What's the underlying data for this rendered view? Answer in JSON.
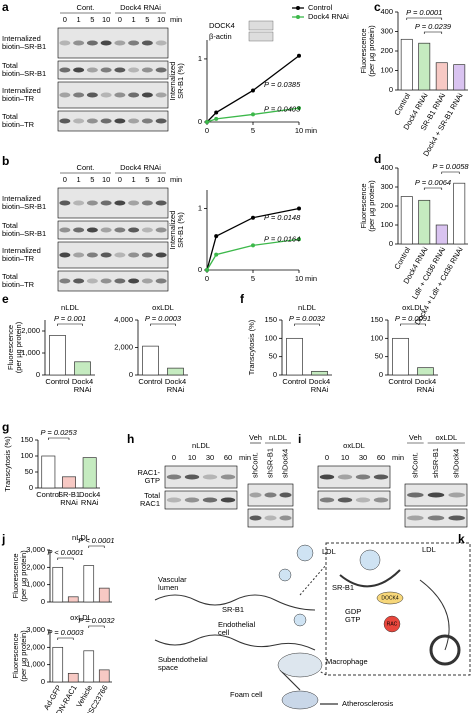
{
  "chart_data": [
    {
      "panel": "a",
      "type": "line",
      "ylabel": [
        "Internalized",
        "SR-B1 (%)"
      ],
      "xlabel": "min",
      "x": [
        0,
        1,
        5,
        10
      ],
      "xlim": [
        0,
        10
      ],
      "xticks": [
        0,
        5,
        10
      ],
      "ylim": [
        0,
        1.3
      ],
      "yticks": [
        0,
        1
      ],
      "legend": "top",
      "series": [
        {
          "name": "Control",
          "color": "#000000",
          "values": [
            0,
            0.15,
            0.5,
            1.05
          ]
        },
        {
          "name": "Dock4 RNAi",
          "color": "#3cb84a",
          "values": [
            0,
            0.05,
            0.12,
            0.22
          ]
        }
      ],
      "annotations": [
        "P = 0.0385",
        "P = 0.0403"
      ],
      "inset": [
        "DOCK4",
        "β-actin"
      ]
    },
    {
      "panel": "c",
      "type": "bar",
      "ylabel": [
        "Fluorescence",
        "(per µg protein)"
      ],
      "categories": [
        "Control",
        "Dock4 RNAi",
        "SR-B1 RNAi",
        "Dock4 + SR-B1 RNAi"
      ],
      "values": [
        260,
        240,
        140,
        130
      ],
      "colors": [
        "#ffffff",
        "#c5ebc0",
        "#f7c9c4",
        "#d9c3f0"
      ],
      "ylim": [
        0,
        400
      ],
      "yticks": [
        0,
        100,
        200,
        300,
        400
      ],
      "annotations": [
        "P = 0.0001",
        "P = 0.0239"
      ]
    },
    {
      "panel": "b",
      "type": "line",
      "ylabel": [
        "Internalized",
        "SR-B1 (%)"
      ],
      "xlabel": "min",
      "x": [
        0,
        1,
        5,
        10
      ],
      "xlim": [
        0,
        10
      ],
      "xticks": [
        0,
        5,
        10
      ],
      "ylim": [
        0,
        1.3
      ],
      "yticks": [
        0,
        1
      ],
      "series": [
        {
          "color": "#000000",
          "values": [
            0,
            0.55,
            0.85,
            1.0
          ]
        },
        {
          "color": "#3cb84a",
          "values": [
            0,
            0.25,
            0.4,
            0.5
          ]
        }
      ],
      "annotations": [
        "P = 0.0148",
        "P = 0.0164"
      ]
    },
    {
      "panel": "d",
      "type": "bar",
      "ylabel": [
        "Fluorescence",
        "(per µg protein)"
      ],
      "categories": [
        "Control",
        "Dock4 RNAi",
        "Ldlr + Cd36 RNAi",
        "Dock4 + Ldlr + Cd36 RNAi"
      ],
      "values": [
        250,
        230,
        100,
        320
      ],
      "colors": [
        "#ffffff",
        "#c5ebc0",
        "#d9c3f0",
        "#ffffff"
      ],
      "ylim": [
        0,
        400
      ],
      "yticks": [
        0,
        100,
        200,
        300,
        400
      ],
      "annotations": [
        "P = 0.0064",
        "P = 0.0058"
      ]
    },
    {
      "panel": "e",
      "type": "bar",
      "title": "nLDL",
      "ylabel": [
        "Fluorescence",
        "(per µg protein)"
      ],
      "categories": [
        [
          "Control"
        ],
        [
          "Dock4",
          "RNAi"
        ]
      ],
      "values": [
        1800,
        600
      ],
      "colors": [
        "#ffffff",
        "#c5ebc0"
      ],
      "ylim": [
        0,
        2500
      ],
      "yticks": [
        0,
        {
          "value": 1000,
          "label": "1,000"
        },
        {
          "value": 2000,
          "label": "2,000"
        }
      ],
      "annotations": [
        "P = 0.001"
      ]
    },
    {
      "type": "bar",
      "title": "oxLDL",
      "categories": [
        [
          "Control"
        ],
        [
          "Dock4",
          "RNAi"
        ]
      ],
      "values": [
        2100,
        500
      ],
      "colors": [
        "#ffffff",
        "#c5ebc0"
      ],
      "ylim": [
        0,
        4000
      ],
      "yticks": [
        0,
        {
          "value": 2000,
          "label": "2,000"
        },
        {
          "value": 4000,
          "label": "4,000"
        }
      ],
      "annotations": [
        "P = 0.0003"
      ]
    },
    {
      "panel": "f",
      "type": "bar",
      "title": "nLDL",
      "ylabel": [
        "Transcytosis (%)"
      ],
      "categories": [
        [
          "Control"
        ],
        [
          "Dock4",
          "RNAi"
        ]
      ],
      "values": [
        100,
        10
      ],
      "colors": [
        "#ffffff",
        "#c5ebc0"
      ],
      "ylim": [
        0,
        150
      ],
      "yticks": [
        0,
        50,
        100,
        150
      ],
      "annotations": [
        "P = 0.0032"
      ]
    },
    {
      "type": "bar",
      "title": "oxLDL",
      "categories": [
        [
          "Control"
        ],
        [
          "Dock4",
          "RNAi"
        ]
      ],
      "values": [
        100,
        20
      ],
      "colors": [
        "#ffffff",
        "#c5ebc0"
      ],
      "ylim": [
        0,
        150
      ],
      "yticks": [
        0,
        50,
        100,
        150
      ],
      "annotations": [
        "P = 0.0091"
      ]
    },
    {
      "panel": "g",
      "type": "bar",
      "ylabel": [
        "Transcytosis (%)"
      ],
      "categories": [
        [
          "Control"
        ],
        [
          "SR-B1",
          "RNAi"
        ],
        [
          "Dock4",
          "RNAi"
        ]
      ],
      "values": [
        100,
        35,
        95
      ],
      "colors": [
        "#ffffff",
        "#f7c9c4",
        "#c5ebc0"
      ],
      "ylim": [
        0,
        150
      ],
      "yticks": [
        0,
        50,
        100,
        150
      ],
      "annotations": [
        "P = 0.0253"
      ]
    },
    {
      "panel": "j",
      "type": "bar",
      "title": "nLDL",
      "ylabel": [
        "Fluorescence",
        "(per µg protein)"
      ],
      "values": [
        2000,
        300,
        2100,
        800
      ],
      "colors": [
        "#ffffff",
        "#f7c9c4",
        "#ffffff",
        "#f7c9c4"
      ],
      "ylim": [
        0,
        3000
      ],
      "yticks": [
        0,
        {
          "value": 1000,
          "label": "1,000"
        },
        {
          "value": 2000,
          "label": "2,000"
        },
        {
          "value": 3000,
          "label": "3,000"
        }
      ],
      "annotations": [
        "P < 0.0001",
        "P < 0.0001"
      ]
    },
    {
      "type": "bar",
      "title": "oxLDL",
      "ylabel": [
        "Fluorescence",
        "(per µg protein)"
      ],
      "categories": [
        "Ad-GFP",
        "Ad-DN-RAC1",
        "Vehicle",
        "NSC23766"
      ],
      "values": [
        2000,
        500,
        1800,
        700
      ],
      "colors": [
        "#ffffff",
        "#f7c9c4",
        "#ffffff",
        "#f7c9c4"
      ],
      "ylim": [
        0,
        3000
      ],
      "yticks": [
        0,
        {
          "value": 1000,
          "label": "1,000"
        },
        {
          "value": 2000,
          "label": "2,000"
        },
        {
          "value": 3000,
          "label": "3,000"
        }
      ],
      "annotations": [
        "P = 0.0003",
        "P = 0.0032"
      ]
    }
  ],
  "blots": [
    {
      "headers": [
        "Cont.",
        "Dock4 RNAi"
      ],
      "lanes": [
        "0",
        "1",
        "5",
        "10",
        "0",
        "1",
        "5",
        "10"
      ],
      "unit": "min",
      "rows": [
        [
          "Internalized",
          "biotin–SR-B1"
        ],
        [
          "Total",
          "biotin–SR-B1"
        ],
        [
          "Internalized",
          "biotin–TR"
        ],
        [
          "Total",
          "biotin–TR"
        ]
      ]
    },
    {
      "headers": [
        "Cont.",
        "Dock4 RNAi"
      ],
      "lanes": [
        "0",
        "1",
        "5",
        "10",
        "0",
        "1",
        "5",
        "10"
      ],
      "unit": "min",
      "rows": [
        [
          "Internalized",
          "biotin–SR-B1"
        ],
        [
          "Total",
          "biotin–SR-B1"
        ],
        [
          "Internalized",
          "biotin–TR"
        ],
        [
          "Total",
          "biotin–TR"
        ]
      ]
    },
    {
      "panel": "h",
      "headers": [
        "nLDL"
      ],
      "lanes": [
        "0",
        "10",
        "30",
        "60"
      ],
      "unit": "min",
      "rows": [
        [
          "RAC1-",
          "GTP"
        ],
        [
          "Total",
          "RAC1"
        ]
      ]
    },
    {
      "headers": [
        "Veh",
        "nLDL"
      ],
      "lanes": [
        "shCont.",
        "shSR-B1",
        "shDock4"
      ]
    },
    {
      "panel": "i",
      "headers": [
        "oxLDL"
      ],
      "lanes": [
        "0",
        "10",
        "30",
        "60"
      ],
      "unit": "min"
    },
    {
      "headers": [
        "Veh",
        "oxLDL"
      ],
      "lanes": [
        "shCont.",
        "shSR-B1",
        "shDock4"
      ]
    }
  ],
  "diagram": {
    "panel": "k",
    "labels": [
      [
        "LDL"
      ],
      [
        "Vascular",
        "lumen"
      ],
      [
        "SR-B1"
      ],
      [
        "Endothelial",
        "cell"
      ],
      [
        "Subendothelial",
        "space"
      ],
      [
        "Macrophage"
      ],
      [
        "Foam cell"
      ],
      [
        "Atherosclerosis"
      ],
      [
        "LDL"
      ],
      [
        "SR-B1"
      ],
      [
        "DOCK4"
      ],
      [
        "GDP",
        "GTP"
      ],
      [
        "RAC"
      ]
    ]
  }
}
